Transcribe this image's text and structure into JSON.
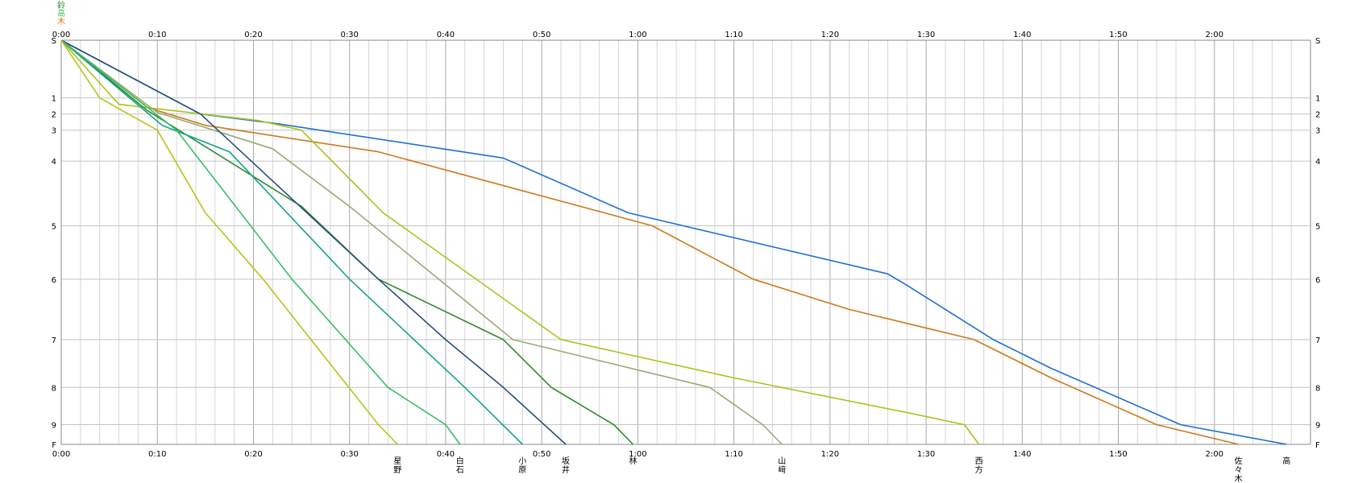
{
  "chart_data": {
    "type": "line",
    "title": "",
    "xlabel": "",
    "ylabel": "",
    "x_unit": "minutes",
    "xlim": [
      0,
      130
    ],
    "x_ticks": [
      {
        "value": 0,
        "label": "0:00"
      },
      {
        "value": 10,
        "label": "0:10"
      },
      {
        "value": 20,
        "label": "0:20"
      },
      {
        "value": 30,
        "label": "0:30"
      },
      {
        "value": 40,
        "label": "0:40"
      },
      {
        "value": 50,
        "label": "0:50"
      },
      {
        "value": 60,
        "label": "1:00"
      },
      {
        "value": 70,
        "label": "1:10"
      },
      {
        "value": 80,
        "label": "1:20"
      },
      {
        "value": 90,
        "label": "1:30"
      },
      {
        "value": 100,
        "label": "1:40"
      },
      {
        "value": 110,
        "label": "1:50"
      },
      {
        "value": 120,
        "label": "2:00"
      }
    ],
    "y_ticks": [
      {
        "value": 0,
        "label": "S"
      },
      {
        "value": 1,
        "label": "1"
      },
      {
        "value": 2,
        "label": "2"
      },
      {
        "value": 3,
        "label": "3"
      },
      {
        "value": 4,
        "label": "4"
      },
      {
        "value": 5,
        "label": "5"
      },
      {
        "value": 6,
        "label": "6"
      },
      {
        "value": 7,
        "label": "7"
      },
      {
        "value": 8,
        "label": "8"
      },
      {
        "value": 9,
        "label": "9"
      },
      {
        "value": 10,
        "label": "F"
      }
    ],
    "checkpoint_distance": [
      0,
      0.82,
      1.05,
      1.28,
      1.72,
      2.64,
      3.4,
      4.26,
      4.94,
      5.47,
      5.75
    ],
    "grid": true,
    "start_label": "鈴\n高\n木",
    "series": [
      {
        "name": "高",
        "color": "#1f6fd1",
        "x": [
          0,
          14.5,
          22.5,
          46,
          59,
          86,
          88,
          97,
          103,
          116.5,
          127.5
        ],
        "y": [
          0,
          2,
          2.6,
          3.9,
          4.8,
          5.9,
          6.1,
          7.0,
          7.6,
          9.0,
          10
        ]
      },
      {
        "name": "佐々木",
        "color": "#cc7a1e",
        "x": [
          0,
          9,
          15,
          33,
          61.5,
          72,
          82,
          95,
          103,
          114,
          122.5
        ],
        "y": [
          0,
          1.6,
          2.7,
          3.7,
          5.0,
          6.0,
          6.5,
          7.0,
          7.8,
          9.0,
          10
        ]
      },
      {
        "name": "西方",
        "color": "#a8c41a",
        "x": [
          0,
          6,
          20.5,
          25,
          33.5,
          52,
          70,
          88.5,
          94,
          95.5
        ],
        "y": [
          0,
          1.4,
          2.4,
          3.0,
          4.8,
          7.0,
          7.8,
          8.7,
          9.0,
          10
        ]
      },
      {
        "name": "山﨑",
        "color": "#9aaa78",
        "x": [
          0,
          10,
          22,
          30,
          47,
          67.5,
          73,
          75
        ],
        "y": [
          0,
          1.9,
          3.6,
          4.7,
          7.0,
          8.0,
          9.0,
          10
        ]
      },
      {
        "name": "林",
        "color": "#2f8a2e",
        "x": [
          0,
          9,
          25,
          33,
          46,
          51,
          57.5,
          59.5
        ],
        "y": [
          0,
          1.8,
          4.7,
          6.0,
          7.0,
          8.0,
          9.0,
          10
        ]
      },
      {
        "name": "坂井",
        "color": "#2b4f7a",
        "x": [
          0,
          14.5,
          33,
          40,
          46,
          52.5
        ],
        "y": [
          0,
          2.0,
          6.0,
          7.0,
          8.0,
          10
        ]
      },
      {
        "name": "小原",
        "color": "#14a38b",
        "x": [
          0,
          10.5,
          17.5,
          30,
          42,
          48
        ],
        "y": [
          0,
          2.7,
          3.7,
          6.0,
          8.0,
          10
        ]
      },
      {
        "name": "白石",
        "color": "#3cbc68",
        "x": [
          0,
          12,
          24,
          34,
          40,
          41.5
        ],
        "y": [
          0,
          3.0,
          6.0,
          8.0,
          9.0,
          10
        ]
      },
      {
        "name": "星野",
        "color": "#b8c41a",
        "x": [
          0,
          4,
          10,
          15,
          21,
          33,
          35
        ],
        "y": [
          0,
          1.0,
          3.0,
          4.8,
          6.0,
          9.0,
          10
        ]
      }
    ],
    "end_labels": [
      {
        "text": "星\n野",
        "color": "#b8c41a",
        "x": 35
      },
      {
        "text": "白\n石",
        "color": "#3cbc68",
        "x": 41.5
      },
      {
        "text": "小\n原",
        "color": "#14a38b",
        "x": 48
      },
      {
        "text": "坂\n井",
        "color": "#2b4f7a",
        "x": 52.5
      },
      {
        "text": "林",
        "color": "#2f8a2e",
        "x": 59.5
      },
      {
        "text": "山\n﨑",
        "color": "#9aaa78",
        "x": 75
      },
      {
        "text": "西\n方",
        "color": "#a8c41a",
        "x": 95.5
      },
      {
        "text": "佐\n々\n木",
        "color": "#cc7a1e",
        "x": 122.5
      },
      {
        "text": "高",
        "color": "#1f6fd1",
        "x": 127.5
      }
    ]
  }
}
